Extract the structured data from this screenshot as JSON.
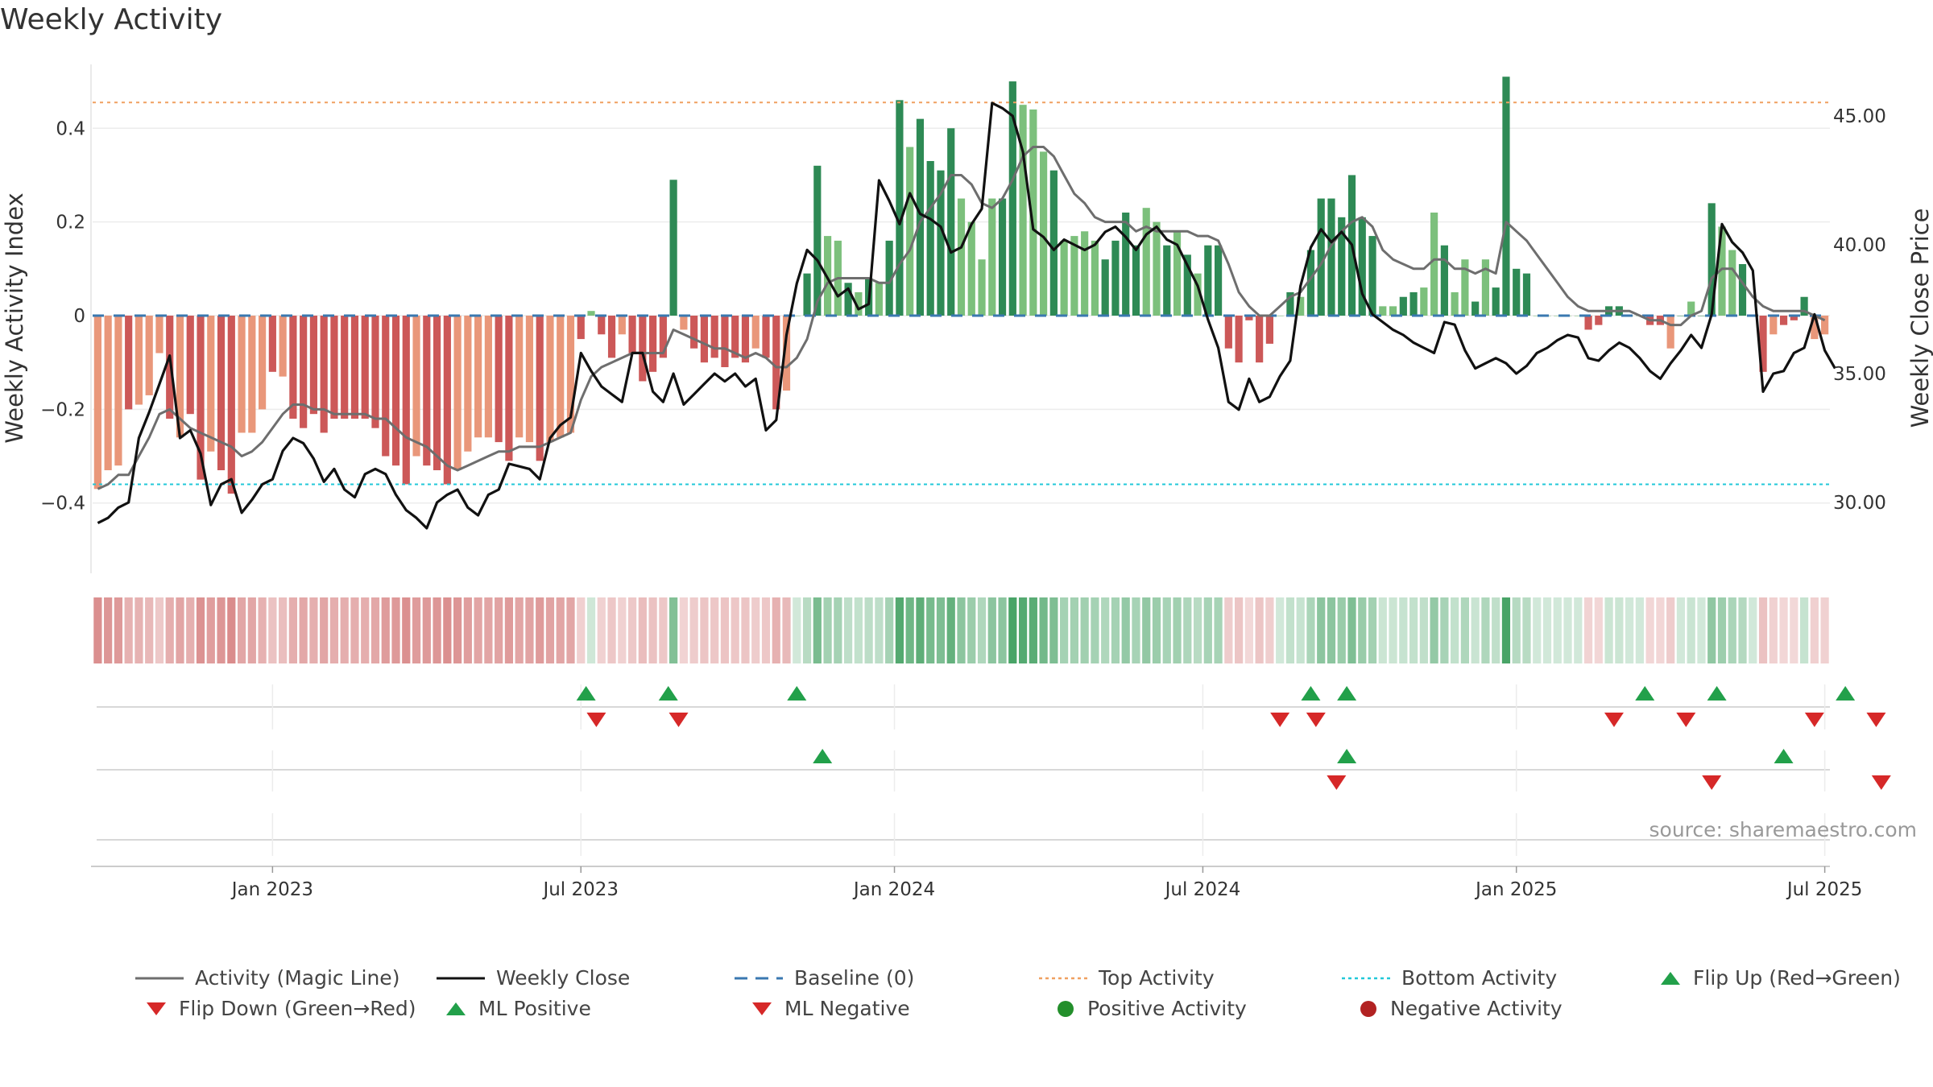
{
  "page": {
    "title": "Weekly Activity",
    "source": "source: sharemaestro.com"
  },
  "colors": {
    "strong_green": "#2e8a55",
    "light_green": "#7cc07c",
    "strong_red": "#cc5858",
    "light_red": "#e9977a",
    "magic_line": "#6e6e6e",
    "weekly_close": "#111111",
    "baseline": "#3a78b0",
    "top_activity": "#f0a060",
    "bottom_activity": "#22c8d8",
    "marker_green": "#22a04a",
    "marker_red": "#d62828",
    "dot_green": "#238f2b",
    "dot_red": "#b22222"
  },
  "chart_data": {
    "type": "bar+line",
    "title": "Weekly Activity",
    "ylabel": "Weekly Activity Index",
    "y2label": "Weekly Close Price",
    "ylim": [
      -0.55,
      0.55
    ],
    "y2lim": [
      27.25,
      47.25
    ],
    "yticks": [
      {
        "v": -0.4,
        "l": "−0.4"
      },
      {
        "v": -0.2,
        "l": "−0.2"
      },
      {
        "v": 0,
        "l": "0"
      },
      {
        "v": 0.2,
        "l": "0.2"
      },
      {
        "v": 0.4,
        "l": "0.4"
      }
    ],
    "y2ticks": [
      {
        "v": 30,
        "l": "30.00"
      },
      {
        "v": 35,
        "l": "35.00"
      },
      {
        "v": 40,
        "l": "40.00"
      },
      {
        "v": 45,
        "l": "45.00"
      }
    ],
    "xticks": [
      {
        "i": 17,
        "l": "Jan 2023"
      },
      {
        "i": 47,
        "l": "Jul 2023"
      },
      {
        "i": 77.5,
        "l": "Jan 2024"
      },
      {
        "i": 107.5,
        "l": "Jul 2024"
      },
      {
        "i": 138,
        "l": "Jan 2025"
      },
      {
        "i": 168,
        "l": "Jul 2025"
      }
    ],
    "top_activity": 0.455,
    "bottom_activity": -0.36,
    "baseline": 0,
    "activity": [
      -0.37,
      -0.33,
      -0.32,
      -0.2,
      -0.19,
      -0.17,
      -0.08,
      -0.22,
      -0.26,
      -0.21,
      -0.35,
      -0.29,
      -0.33,
      -0.38,
      -0.25,
      -0.25,
      -0.2,
      -0.12,
      -0.13,
      -0.22,
      -0.24,
      -0.21,
      -0.25,
      -0.22,
      -0.22,
      -0.22,
      -0.22,
      -0.24,
      -0.3,
      -0.32,
      -0.36,
      -0.3,
      -0.32,
      -0.33,
      -0.36,
      -0.33,
      -0.29,
      -0.26,
      -0.26,
      -0.27,
      -0.31,
      -0.26,
      -0.27,
      -0.31,
      -0.27,
      -0.26,
      -0.25,
      -0.05,
      0.01,
      -0.04,
      -0.09,
      -0.04,
      -0.08,
      -0.14,
      -0.12,
      -0.09,
      0.29,
      -0.03,
      -0.07,
      -0.1,
      -0.09,
      -0.11,
      -0.09,
      -0.1,
      -0.07,
      -0.09,
      -0.2,
      -0.16,
      0.0,
      0.09,
      0.32,
      0.17,
      0.16,
      0.07,
      0.05,
      0.08,
      0.07,
      0.16,
      0.46,
      0.36,
      0.42,
      0.33,
      0.31,
      0.4,
      0.25,
      0.2,
      0.12,
      0.25,
      0.25,
      0.5,
      0.45,
      0.44,
      0.35,
      0.31,
      0.16,
      0.17,
      0.18,
      0.16,
      0.12,
      0.16,
      0.22,
      0.15,
      0.23,
      0.2,
      0.15,
      0.18,
      0.13,
      0.09,
      0.15,
      0.15,
      -0.07,
      -0.1,
      -0.01,
      -0.1,
      -0.06,
      0.0,
      0.05,
      0.04,
      0.14,
      0.25,
      0.25,
      0.21,
      0.3,
      0.21,
      0.17,
      0.02,
      0.02,
      0.04,
      0.05,
      0.06,
      0.22,
      0.15,
      0.05,
      0.12,
      0.03,
      0.12,
      0.06,
      0.51,
      0.1,
      0.09,
      0.0,
      0.0,
      0.0,
      0.0,
      0.0,
      -0.03,
      -0.02,
      0.02,
      0.02,
      0.0,
      0.0,
      -0.02,
      -0.02,
      -0.07,
      0.0,
      0.03,
      0.0,
      0.24,
      0.19,
      0.14,
      0.11,
      0.0,
      -0.12,
      -0.04,
      -0.02,
      -0.01,
      0.04,
      -0.05,
      -0.04
    ],
    "activity_strong": [
      0,
      0,
      0,
      1,
      0,
      0,
      0,
      1,
      0,
      1,
      1,
      0,
      1,
      1,
      0,
      0,
      0,
      1,
      0,
      1,
      1,
      1,
      1,
      1,
      1,
      1,
      1,
      1,
      1,
      1,
      1,
      0,
      1,
      1,
      1,
      0,
      0,
      0,
      0,
      1,
      1,
      0,
      0,
      1,
      0,
      0,
      0,
      1,
      0,
      1,
      1,
      0,
      1,
      1,
      1,
      1,
      1,
      0,
      1,
      1,
      1,
      1,
      1,
      1,
      0,
      1,
      1,
      0,
      0,
      1,
      1,
      0,
      0,
      1,
      0,
      1,
      0,
      1,
      1,
      0,
      1,
      1,
      1,
      1,
      0,
      0,
      0,
      0,
      1,
      1,
      0,
      0,
      0,
      1,
      0,
      0,
      0,
      0,
      1,
      1,
      1,
      1,
      0,
      0,
      1,
      0,
      1,
      0,
      1,
      1,
      1,
      1,
      1,
      1,
      1,
      0,
      1,
      0,
      1,
      1,
      1,
      1,
      1,
      1,
      1,
      0,
      0,
      1,
      1,
      0,
      0,
      1,
      0,
      0,
      1,
      0,
      1,
      1,
      1,
      1,
      0,
      0,
      0,
      0,
      0,
      1,
      1,
      1,
      1,
      0,
      0,
      1,
      1,
      0,
      1,
      0,
      1,
      1,
      0,
      0,
      1,
      1,
      1,
      0,
      1,
      1,
      1
    ],
    "magic_line": [
      -0.37,
      -0.36,
      -0.34,
      -0.34,
      -0.3,
      -0.26,
      -0.21,
      -0.2,
      -0.22,
      -0.24,
      -0.25,
      -0.26,
      -0.27,
      -0.28,
      -0.3,
      -0.29,
      -0.27,
      -0.24,
      -0.21,
      -0.19,
      -0.19,
      -0.2,
      -0.2,
      -0.21,
      -0.21,
      -0.21,
      -0.21,
      -0.22,
      -0.22,
      -0.24,
      -0.26,
      -0.27,
      -0.28,
      -0.3,
      -0.32,
      -0.33,
      -0.32,
      -0.31,
      -0.3,
      -0.29,
      -0.29,
      -0.28,
      -0.28,
      -0.28,
      -0.27,
      -0.26,
      -0.25,
      -0.18,
      -0.13,
      -0.11,
      -0.1,
      -0.09,
      -0.08,
      -0.08,
      -0.08,
      -0.08,
      -0.03,
      -0.04,
      -0.05,
      -0.06,
      -0.07,
      -0.07,
      -0.08,
      -0.09,
      -0.08,
      -0.09,
      -0.11,
      -0.11,
      -0.09,
      -0.05,
      0.03,
      0.07,
      0.08,
      0.08,
      0.08,
      0.08,
      0.07,
      0.07,
      0.11,
      0.14,
      0.2,
      0.23,
      0.26,
      0.3,
      0.3,
      0.28,
      0.24,
      0.23,
      0.25,
      0.29,
      0.34,
      0.36,
      0.36,
      0.34,
      0.3,
      0.26,
      0.24,
      0.21,
      0.2,
      0.2,
      0.2,
      0.18,
      0.19,
      0.18,
      0.18,
      0.18,
      0.18,
      0.17,
      0.17,
      0.16,
      0.11,
      0.05,
      0.02,
      0.0,
      0.0,
      0.02,
      0.04,
      0.05,
      0.08,
      0.11,
      0.15,
      0.18,
      0.2,
      0.21,
      0.19,
      0.14,
      0.12,
      0.11,
      0.1,
      0.1,
      0.12,
      0.12,
      0.1,
      0.1,
      0.09,
      0.1,
      0.09,
      0.2,
      0.18,
      0.16,
      0.13,
      0.1,
      0.07,
      0.04,
      0.02,
      0.01,
      0.01,
      0.01,
      0.01,
      0.01,
      0.0,
      -0.01,
      -0.01,
      -0.02,
      -0.02,
      0.0,
      0.01,
      0.08,
      0.1,
      0.1,
      0.07,
      0.04,
      0.02,
      0.01,
      0.01,
      0.01,
      0.01,
      0.0,
      -0.01
    ],
    "weekly_close": [
      29.2,
      29.4,
      29.8,
      30.0,
      32.5,
      33.5,
      34.6,
      35.7,
      32.5,
      32.8,
      31.9,
      29.9,
      30.7,
      30.9,
      29.6,
      30.1,
      30.7,
      30.9,
      32.0,
      32.5,
      32.3,
      31.7,
      30.8,
      31.3,
      30.5,
      30.2,
      31.1,
      31.3,
      31.1,
      30.3,
      29.7,
      29.4,
      29.0,
      30.0,
      30.3,
      30.5,
      29.8,
      29.5,
      30.3,
      30.5,
      31.5,
      31.4,
      31.3,
      30.9,
      32.5,
      33.0,
      33.3,
      35.8,
      35.1,
      34.5,
      34.2,
      33.9,
      35.8,
      35.8,
      34.3,
      33.9,
      35.0,
      33.8,
      34.2,
      34.6,
      35.0,
      34.7,
      35.0,
      34.5,
      34.8,
      32.8,
      33.2,
      36.5,
      38.5,
      39.8,
      39.4,
      38.7,
      38.0,
      38.3,
      37.5,
      37.7,
      42.5,
      41.7,
      40.8,
      42.0,
      41.2,
      41.0,
      40.7,
      39.7,
      39.9,
      40.8,
      41.4,
      45.5,
      45.3,
      45.0,
      43.6,
      40.6,
      40.3,
      39.8,
      40.2,
      40.0,
      39.8,
      40.0,
      40.5,
      40.7,
      40.3,
      39.8,
      40.4,
      40.7,
      40.2,
      40.0,
      39.2,
      38.4,
      37.1,
      36.0,
      33.9,
      33.6,
      34.8,
      33.9,
      34.1,
      34.9,
      35.5,
      38.4,
      39.9,
      40.6,
      40.1,
      40.5,
      40.0,
      38.1,
      37.3,
      37.0,
      36.7,
      36.5,
      36.2,
      36.0,
      35.8,
      37.0,
      36.9,
      35.9,
      35.2,
      35.4,
      35.6,
      35.4,
      35.0,
      35.3,
      35.8,
      36.0,
      36.3,
      36.5,
      36.4,
      35.6,
      35.5,
      35.9,
      36.2,
      36.0,
      35.6,
      35.1,
      34.8,
      35.4,
      35.9,
      36.5,
      36.0,
      37.3,
      40.8,
      40.1,
      39.7,
      39.0,
      34.3,
      35.0,
      35.1,
      35.8,
      36.0,
      37.3,
      35.9,
      35.2
    ]
  },
  "signal_rows": [
    {
      "name": "flip-row",
      "up": [
        47.5,
        55.5,
        68,
        118,
        121.5,
        150.5,
        157.5,
        170
      ],
      "down": [
        48.5,
        56.5,
        115,
        118.5,
        147.5,
        154.5,
        167,
        173
      ]
    },
    {
      "name": "ml-row",
      "up": [
        70.5,
        121.5,
        164
      ],
      "down": [
        120.5,
        157,
        173.5
      ]
    },
    {
      "name": "activity-row",
      "up": [],
      "down": []
    }
  ],
  "legend": [
    {
      "label": "Activity (Magic Line)",
      "kind": "line-gray"
    },
    {
      "label": "Weekly Close",
      "kind": "line-black"
    },
    {
      "label": "Baseline (0)",
      "kind": "line-dash-blue"
    },
    {
      "label": "Top Activity",
      "kind": "line-dot-orange"
    },
    {
      "label": "Bottom Activity",
      "kind": "line-dot-cyan"
    },
    {
      "label": "Flip Up (Red→Green)",
      "kind": "tri-up"
    },
    {
      "label": "Flip Down (Green→Red)",
      "kind": "tri-down"
    },
    {
      "label": "ML Positive",
      "kind": "tri-up"
    },
    {
      "label": "ML Negative",
      "kind": "tri-down"
    },
    {
      "label": "Positive Activity",
      "kind": "dot-green"
    },
    {
      "label": "Negative Activity",
      "kind": "dot-red"
    }
  ]
}
